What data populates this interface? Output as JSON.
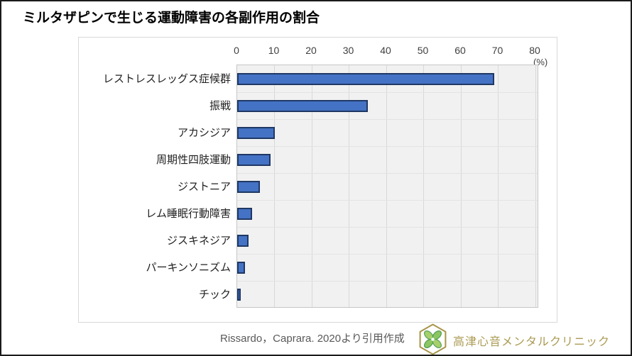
{
  "title": "ミルタザピンで生じる運動障害の各副作用の割合",
  "chart_data": {
    "type": "bar",
    "orientation": "horizontal",
    "title": "ミルタザピンで生じる運動障害の各副作用の割合",
    "categories": [
      "レストレスレッグス症候群",
      "振戦",
      "アカシジア",
      "周期性四肢運動",
      "ジストニア",
      "レム睡眠行動障害",
      "ジスキネジア",
      "パーキンソニズム",
      "チック"
    ],
    "values": [
      69,
      35,
      10,
      9,
      6,
      4,
      3,
      2,
      1
    ],
    "xlabel": "(%)",
    "ylabel": "",
    "xlim": [
      0,
      80
    ],
    "xticks": [
      0,
      10,
      20,
      30,
      40,
      50,
      60,
      70,
      80
    ],
    "grid": "vertical-major",
    "legend": "none",
    "bar_color": "#4472c4",
    "bar_border_color": "#1f3864",
    "plot_background": "#f1f1f1"
  },
  "footer": {
    "source_text": "Rissardo，Caprara. 2020より引用作成",
    "clinic_name": "高津心音メンタルクリニック",
    "logo_icon": "hexagon-clover-logo",
    "clinic_text_color": "#ab9b54"
  }
}
